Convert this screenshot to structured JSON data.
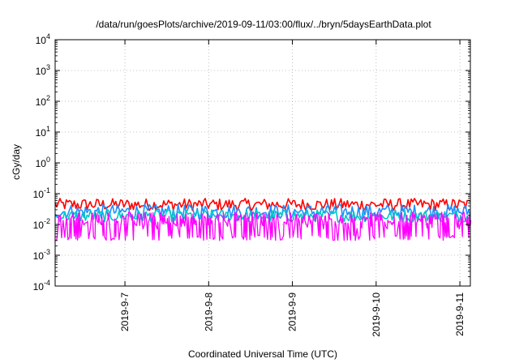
{
  "chart_data": {
    "type": "line",
    "title": "/data/run/goesPlots/archive/2019-09-11/03:00/flux/../bryn/5daysEarthData.plot",
    "xlabel": "Coordinated Universal Time (UTC)",
    "ylabel": "cGy/day",
    "yscale": "log",
    "ylim": [
      0.0001,
      10000
    ],
    "xlim": [
      "2019-09-06T04:00",
      "2019-09-11T03:00"
    ],
    "grid": true,
    "legend": "none",
    "y_ticks": [
      {
        "base": "10",
        "exp": "-4"
      },
      {
        "base": "10",
        "exp": "-3"
      },
      {
        "base": "10",
        "exp": "-2"
      },
      {
        "base": "10",
        "exp": "-1"
      },
      {
        "base": "10",
        "exp": "0"
      },
      {
        "base": "10",
        "exp": "1"
      },
      {
        "base": "10",
        "exp": "2"
      },
      {
        "base": "10",
        "exp": "3"
      },
      {
        "base": "10",
        "exp": "4"
      }
    ],
    "x_ticks": [
      {
        "label": "2019-9-7",
        "t": "2019-09-07T00:00"
      },
      {
        "label": "2019-9-8",
        "t": "2019-09-08T00:00"
      },
      {
        "label": "2019-9-9",
        "t": "2019-09-09T00:00"
      },
      {
        "label": "2019-9-10",
        "t": "2019-09-10T00:00"
      },
      {
        "label": "2019-9-11",
        "t": "2019-09-11T00:00"
      }
    ],
    "series": [
      {
        "color": "#ff0000",
        "low": 0.028,
        "high": 0.07
      },
      {
        "color": "#1f8fff",
        "low": 0.015,
        "high": 0.045
      },
      {
        "color": "#00c8c8",
        "low": 0.012,
        "high": 0.03
      },
      {
        "color": "#ff00ff",
        "low": 0.003,
        "high": 0.025
      }
    ]
  }
}
